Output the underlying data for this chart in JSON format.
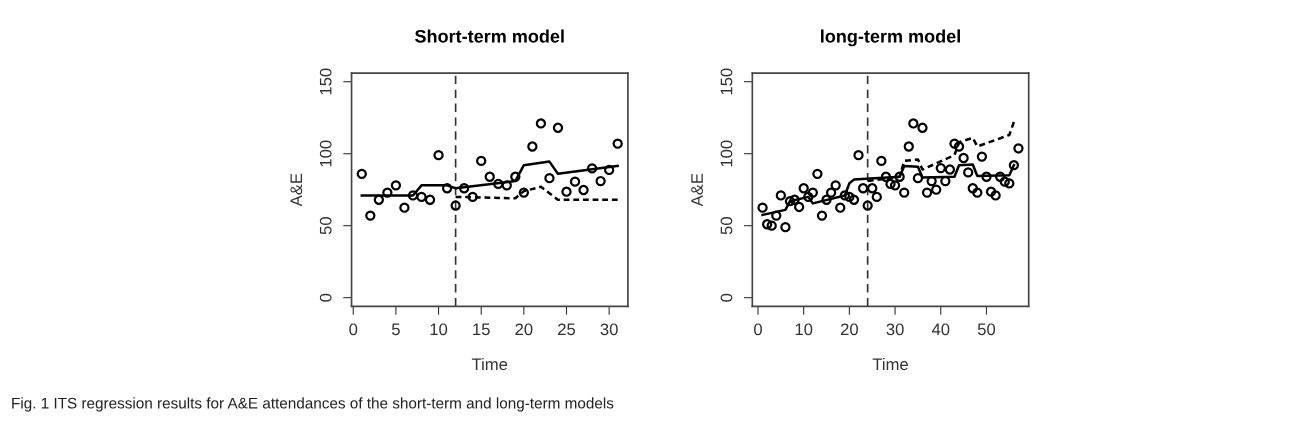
{
  "chart_data": [
    {
      "type": "scatter",
      "title": "Short-term model",
      "xlabel": "Time",
      "ylabel": "A&E",
      "xlim": [
        -0.2,
        32.2
      ],
      "xticks": [
        0,
        5,
        10,
        15,
        20,
        25,
        30
      ],
      "ylim": [
        -6,
        156
      ],
      "yticks": [
        0,
        50,
        100,
        150
      ],
      "grid": false,
      "series": [
        {
          "marker": "circle",
          "color": "#000000",
          "x": [
            1,
            2,
            3,
            4,
            5,
            6,
            7,
            8,
            9,
            10,
            11,
            12,
            13,
            14,
            15,
            16,
            17,
            18,
            19,
            20,
            21,
            22,
            23,
            24,
            25,
            26,
            27,
            28,
            29,
            30,
            31
          ],
          "values": [
            86,
            57,
            68,
            73,
            78,
            62.5,
            71,
            70,
            68,
            99,
            76,
            64,
            76,
            70,
            95,
            84,
            79,
            78,
            84,
            73,
            105,
            121,
            83,
            118,
            73.6,
            80.6,
            74.8,
            89.8,
            81,
            88.7,
            107
          ]
        },
        {
          "type": "line",
          "line_style": "solid",
          "color": "#000000",
          "x": [
            1,
            7,
            8,
            11,
            12,
            19,
            20,
            23,
            24,
            31
          ],
          "values": [
            71,
            71,
            78,
            78,
            76,
            81,
            92,
            94.5,
            86,
            91.5
          ]
        },
        {
          "type": "line",
          "line_style": "dashed",
          "color": "#000000",
          "x": [
            12,
            19,
            20,
            22,
            24,
            31
          ],
          "values": [
            70,
            69,
            74,
            77,
            68,
            68
          ]
        }
      ],
      "ref_lines": [
        {
          "axis": "x",
          "value": 12,
          "label": null,
          "color": "#333333",
          "line_style": "dashed"
        }
      ],
      "annotations": [
        "Fig. 1 ITS regression results for A&E attendances of the short-term and long-term models"
      ]
    },
    {
      "type": "scatter",
      "title": "long-term model",
      "xlabel": "Time",
      "ylabel": "A&E",
      "xlim": [
        -1.24,
        59.24
      ],
      "xticks": [
        0,
        10,
        20,
        30,
        40,
        50
      ],
      "ylim": [
        -6,
        156
      ],
      "yticks": [
        0,
        50,
        100,
        150
      ],
      "grid": false,
      "series": [
        {
          "marker": "circle",
          "color": "#000000",
          "x": [
            1,
            2,
            3,
            4,
            5,
            6,
            7,
            8,
            9,
            10,
            11,
            12,
            13,
            14,
            15,
            16,
            17,
            18,
            19,
            20,
            21,
            22,
            23,
            24,
            25,
            26,
            27,
            28,
            29,
            30,
            31,
            32,
            33,
            34,
            35,
            36,
            37,
            38,
            39,
            40,
            41,
            42,
            43,
            44,
            45,
            46,
            47,
            48,
            49,
            50,
            51,
            52,
            53,
            54,
            55,
            56,
            57
          ],
          "values": [
            62.5,
            51,
            50,
            57,
            71,
            49,
            67,
            68,
            63,
            76,
            70,
            73,
            86,
            57,
            68,
            73,
            78,
            62.5,
            71,
            70,
            68,
            99,
            76,
            64,
            76,
            70,
            95,
            84,
            79,
            78,
            84,
            73,
            105,
            121,
            83,
            118,
            73,
            81,
            75,
            90,
            81,
            89,
            107,
            105,
            97,
            87,
            76,
            73,
            98,
            84,
            73.6,
            71,
            84,
            80.6,
            79.4,
            92,
            103.7
          ]
        },
        {
          "type": "line",
          "line_style": "solid",
          "color": "#000000",
          "x": [
            1,
            6,
            7,
            11,
            12,
            19,
            20,
            21,
            31,
            32,
            35,
            36,
            43,
            44,
            47,
            48,
            55,
            56
          ],
          "values": [
            57.5,
            61,
            67,
            70,
            65.5,
            71,
            79.5,
            82,
            84,
            91.5,
            91,
            83.5,
            84,
            92,
            92.5,
            84.5,
            85,
            92
          ]
        },
        {
          "type": "line",
          "line_style": "dashed",
          "color": "#000000",
          "x": [
            24,
            31,
            32,
            35,
            36,
            43,
            44,
            47,
            48,
            55,
            56
          ],
          "values": [
            81,
            84,
            95,
            96,
            89,
            99,
            108,
            111,
            105,
            113,
            122
          ]
        }
      ],
      "ref_lines": [
        {
          "axis": "x",
          "value": 24,
          "label": null,
          "color": "#333333",
          "line_style": "dashed"
        }
      ]
    }
  ]
}
